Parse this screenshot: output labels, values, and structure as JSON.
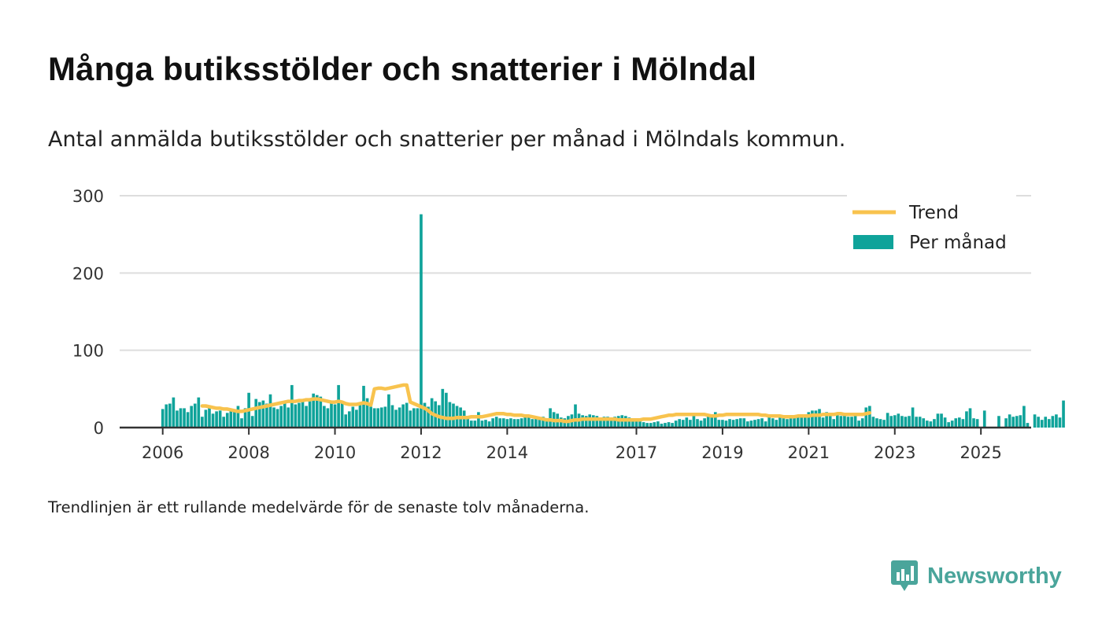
{
  "title": "Många butiksstölder och snatterier i Mölndal",
  "subtitle": "Antal anmälda butiksstölder och snatterier per månad i Mölndals kommun.",
  "footnote": "Trendlinjen är ett rullande medelvärde för de senaste tolv månaderna.",
  "brand": {
    "name": "Newsworthy",
    "logo_icon": "bar-chart-chat-bubble-icon",
    "color": "#4aa59b"
  },
  "colors": {
    "bar": "#0fa39a",
    "trend": "#f8c34e",
    "grid": "#dddddd",
    "axis": "#333333"
  },
  "chart_data": {
    "type": "bar",
    "title": "Många butiksstölder och snatterier i Mölndal",
    "subtitle": "Antal anmälda butiksstölder och snatterier per månad i Mölndals kommun.",
    "xlabel": "",
    "ylabel": "",
    "ylim": [
      0,
      300
    ],
    "xlim": [
      "2005-01",
      "2026-03"
    ],
    "y_ticks": [
      0,
      100,
      200,
      300
    ],
    "x_ticks": [
      "2006",
      "2008",
      "2010",
      "2012",
      "2014",
      "2017",
      "2019",
      "2021",
      "2023",
      "2025"
    ],
    "grid": "horizontal",
    "legend": {
      "position": "top-right",
      "entries": [
        "Trend",
        "Per månad"
      ]
    },
    "series": [
      {
        "name": "Per månad",
        "kind": "bar",
        "start": "2006-01",
        "frequency": "monthly",
        "values": [
          24,
          30,
          31,
          39,
          22,
          25,
          25,
          20,
          28,
          31,
          39,
          14,
          23,
          25,
          18,
          21,
          22,
          14,
          19,
          21,
          20,
          28,
          12,
          25,
          45,
          15,
          37,
          33,
          35,
          31,
          43,
          26,
          24,
          28,
          31,
          26,
          55,
          30,
          32,
          35,
          28,
          34,
          44,
          42,
          40,
          28,
          25,
          35,
          30,
          55,
          33,
          17,
          21,
          27,
          23,
          31,
          54,
          38,
          27,
          25,
          25,
          26,
          27,
          43,
          29,
          23,
          26,
          30,
          32,
          22,
          25,
          25,
          276,
          32,
          27,
          38,
          34,
          29,
          50,
          45,
          33,
          31,
          28,
          26,
          22,
          12,
          9,
          9,
          20,
          9,
          10,
          8,
          12,
          14,
          12,
          12,
          11,
          12,
          11,
          11,
          12,
          15,
          14,
          11,
          13,
          12,
          14,
          12,
          25,
          20,
          18,
          13,
          12,
          15,
          17,
          30,
          18,
          16,
          15,
          17,
          16,
          15,
          13,
          14,
          14,
          13,
          14,
          15,
          16,
          15,
          13,
          12,
          11,
          8,
          7,
          6,
          6,
          7,
          8,
          5,
          6,
          7,
          6,
          9,
          11,
          10,
          13,
          10,
          15,
          11,
          9,
          12,
          14,
          15,
          20,
          10,
          10,
          9,
          11,
          10,
          11,
          12,
          12,
          8,
          9,
          10,
          11,
          12,
          8,
          15,
          12,
          10,
          13,
          15,
          11,
          12,
          15,
          16,
          13,
          15,
          20,
          22,
          22,
          24,
          13,
          20,
          15,
          11,
          16,
          15,
          18,
          14,
          14,
          15,
          9,
          12,
          26,
          28,
          14,
          12,
          11,
          10,
          19,
          15,
          16,
          18,
          15,
          14,
          15,
          26,
          14,
          14,
          12,
          9,
          8,
          11,
          18,
          18,
          13,
          7,
          9,
          12,
          13,
          11,
          21,
          25,
          12,
          11,
          0,
          22,
          0,
          0,
          0,
          15,
          0,
          12,
          17,
          14,
          15,
          16,
          28,
          6,
          0,
          17,
          14,
          10,
          14,
          11,
          15,
          17,
          13,
          35
        ]
      },
      {
        "name": "Trend",
        "kind": "line",
        "start": "2006-12",
        "frequency": "monthly",
        "values": [
          28,
          28,
          27,
          26,
          25,
          25,
          24,
          24,
          23,
          22,
          21,
          21,
          22,
          23,
          24,
          25,
          26,
          27,
          28,
          29,
          30,
          31,
          32,
          33,
          34,
          34,
          34,
          35,
          35,
          36,
          36,
          37,
          37,
          36,
          35,
          34,
          33,
          33,
          34,
          33,
          31,
          30,
          30,
          30,
          31,
          32,
          31,
          29,
          50,
          51,
          51,
          50,
          51,
          52,
          53,
          54,
          55,
          55,
          33,
          31,
          29,
          27,
          25,
          22,
          18,
          16,
          14,
          13,
          12,
          12,
          12,
          13,
          13,
          13,
          13,
          14,
          14,
          14,
          14,
          15,
          16,
          17,
          18,
          18,
          18,
          17,
          17,
          16,
          16,
          16,
          15,
          15,
          14,
          13,
          12,
          11,
          10,
          10,
          9,
          9,
          9,
          8,
          8,
          9,
          10,
          10,
          11,
          11,
          11,
          11,
          11,
          11,
          11,
          11,
          11,
          11,
          10,
          10,
          10,
          10,
          10,
          10,
          10,
          11,
          11,
          11,
          12,
          13,
          14,
          15,
          16,
          16,
          17,
          17,
          17,
          17,
          17,
          17,
          17,
          17,
          17,
          16,
          15,
          15,
          16,
          16,
          17,
          17,
          17,
          17,
          17,
          17,
          17,
          17,
          17,
          17,
          16,
          16,
          15,
          15,
          15,
          15,
          14,
          14,
          14,
          14,
          15,
          15,
          15,
          15,
          16,
          16,
          16,
          17,
          17,
          17,
          17,
          18,
          18,
          17,
          17,
          17,
          17,
          17,
          17,
          18,
          19
        ]
      }
    ]
  }
}
